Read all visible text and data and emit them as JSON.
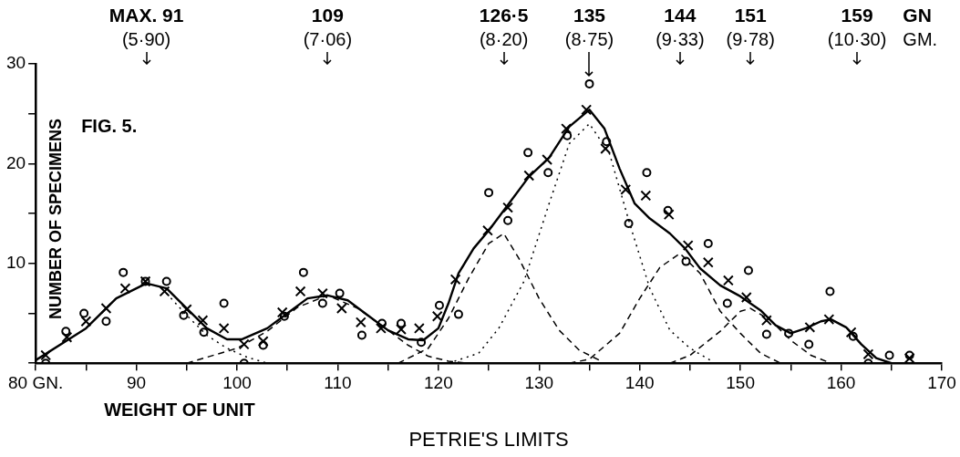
{
  "chart_data": {
    "type": "line",
    "title": "FIG. 5.",
    "xlabel": "WEIGHT OF UNIT",
    "ylabel": "NUMBER OF SPECIMENS",
    "annotations": [
      {
        "text": "MAX. 91\n(5·90)",
        "x": 91
      },
      {
        "text": "109\n(7·06)",
        "x": 109
      },
      {
        "text": "126·5\n(8·20)",
        "x": 126.5
      },
      {
        "text": "135\n(8·75)",
        "x": 135,
        "y": 28
      },
      {
        "text": "144\n(9·33)",
        "x": 144
      },
      {
        "text": "151\n(9·78)",
        "x": 151
      },
      "159\n(10·30)",
      "GN\nGM.",
      "PETRIE'S LIMITS"
    ],
    "xlim": [
      80,
      170
    ],
    "ylim": [
      0,
      30
    ],
    "xticks": [
      {
        "value": 80,
        "label": "80 GN."
      },
      {
        "value": 85,
        "label": null
      },
      90,
      {
        "value": 95,
        "label": null
      },
      100,
      {
        "value": 105,
        "label": null
      },
      110,
      {
        "value": 115,
        "label": null
      },
      120,
      {
        "value": 125,
        "label": null
      },
      130,
      {
        "value": 135,
        "label": null
      },
      140,
      {
        "value": 145,
        "label": null
      },
      150,
      {
        "value": 155,
        "label": null
      },
      160,
      {
        "value": 165,
        "label": null
      },
      170
    ],
    "yticks": [
      {
        "value": 0,
        "label": null
      },
      {
        "value": 5,
        "label": null
      },
      10,
      {
        "value": 15,
        "label": null
      },
      20,
      {
        "value": 25,
        "label": null
      },
      30
    ],
    "grid": false,
    "legend": false,
    "series": [
      {
        "type": "line",
        "color": "#000000",
        "line_style": "solid",
        "marker": "none",
        "x": [
          80,
          85,
          88,
          91,
          93,
          95,
          97,
          99,
          100.5,
          103,
          105,
          107,
          109,
          111,
          113,
          115,
          117,
          118.5,
          120,
          121,
          122,
          123.5,
          125,
          127,
          129,
          131,
          133,
          135,
          136.5,
          138,
          139.5,
          141,
          143,
          144.5,
          146,
          148,
          150,
          152,
          153.5,
          155,
          156.5,
          158,
          159,
          160.5,
          162,
          163.5,
          165
        ],
        "values": [
          0.3,
          3.5,
          6.5,
          8,
          7.5,
          5.5,
          3.5,
          2.4,
          2.4,
          3.5,
          5,
          6.5,
          6.8,
          6.3,
          4.8,
          3.3,
          2.4,
          2.3,
          3.5,
          6,
          9,
          11.5,
          13.3,
          16,
          18.7,
          20.6,
          23.7,
          25.4,
          23.5,
          19.5,
          16,
          14.5,
          13,
          11.5,
          9.5,
          7.8,
          6.7,
          5.3,
          3.8,
          3,
          3.5,
          4.2,
          4.4,
          3.6,
          1.9,
          0.5,
          0
        ]
      },
      {
        "type": "line",
        "color": "#000000",
        "line_style": "dotted",
        "marker": "none",
        "x": [
          93,
          95,
          97,
          99,
          101,
          103
        ],
        "values": [
          7,
          4.8,
          2.8,
          1.5,
          0.6,
          0
        ]
      },
      {
        "type": "line",
        "color": "#000000",
        "line_style": "dashed",
        "marker": "none",
        "x": [
          95,
          100,
          103,
          106,
          109,
          112,
          115,
          117,
          119,
          121,
          123
        ],
        "values": [
          0,
          1.5,
          3.2,
          5.6,
          6.8,
          5.5,
          3.3,
          1.8,
          0.7,
          0.2,
          0
        ]
      },
      {
        "type": "line",
        "color": "#000000",
        "line_style": "dashed",
        "marker": "none",
        "x": [
          116,
          119,
          121,
          123,
          125,
          126.5,
          128,
          130,
          132,
          134,
          136
        ],
        "values": [
          0,
          1.5,
          4.5,
          8.5,
          12,
          13,
          10.5,
          6.5,
          3.3,
          1.3,
          0.3
        ]
      },
      {
        "type": "line",
        "color": "#000000",
        "line_style": "dotted",
        "marker": "none",
        "x": [
          121,
          124,
          126,
          128.5,
          131,
          133,
          135,
          137,
          139,
          141,
          143,
          145,
          147
        ],
        "values": [
          0,
          1,
          3.5,
          8.2,
          16,
          22,
          24,
          21,
          14,
          7.5,
          3.3,
          1.5,
          0.3
        ]
      },
      {
        "type": "line",
        "color": "#000000",
        "line_style": "dashed",
        "marker": "none",
        "x": [
          133,
          135,
          138,
          140,
          142,
          144,
          146,
          148,
          150,
          152,
          154
        ],
        "values": [
          0,
          0.4,
          3,
          6.5,
          9.6,
          11,
          9,
          5.2,
          3,
          1,
          0
        ]
      },
      {
        "type": "line",
        "color": "#000000",
        "line_style": "dashed",
        "marker": "none",
        "x": [
          143,
          145,
          148,
          150,
          151,
          153,
          155,
          157,
          159
        ],
        "values": [
          0,
          0.8,
          3.2,
          5.2,
          5.5,
          4.3,
          2.3,
          0.8,
          0
        ]
      },
      {
        "type": "scatter",
        "color": "#000000",
        "marker": "circle",
        "x": [
          81,
          83,
          84.8,
          87,
          88.7,
          90.9,
          93,
          94.7,
          96.7,
          98.7,
          100.7,
          102.6,
          104.7,
          106.6,
          108.5,
          110.2,
          112.4,
          114.4,
          116.3,
          118.3,
          120.1,
          122,
          125,
          126.9,
          128.9,
          130.9,
          132.8,
          135,
          136.7,
          138.9,
          140.7,
          142.8,
          144.6,
          146.8,
          148.7,
          150.8,
          152.6,
          154.8,
          156.8,
          158.9,
          161.2,
          162.7,
          164.8,
          166.8
        ],
        "values": [
          0,
          3.2,
          5,
          4.2,
          9.1,
          8.2,
          8.2,
          4.8,
          3.1,
          6,
          0,
          1.8,
          4.7,
          9.1,
          6,
          7,
          2.8,
          4,
          4,
          2.1,
          5.8,
          4.9,
          17.1,
          14.3,
          21.1,
          19.1,
          22.8,
          28,
          22.2,
          14,
          19.1,
          15.3,
          10.2,
          12,
          6,
          9.3,
          2.9,
          3,
          1.9,
          7.2,
          2.7,
          0,
          0.8,
          0.8
        ]
      },
      {
        "type": "scatter",
        "color": "#000000",
        "marker": "cross",
        "x": [
          81,
          83.1,
          85,
          87,
          88.9,
          90.9,
          92.8,
          95,
          96.6,
          98.7,
          100.7,
          102.6,
          104.5,
          106.3,
          108.5,
          110.4,
          112.3,
          114.3,
          116.3,
          118.1,
          119.9,
          121.7,
          124.9,
          126.9,
          129,
          130.8,
          132.7,
          134.7,
          136.6,
          138.6,
          140.6,
          142.9,
          144.8,
          146.8,
          148.8,
          150.6,
          152.6,
          156.9,
          158.8,
          161,
          162.7,
          166.8
        ],
        "values": [
          0.8,
          2.6,
          4.2,
          5.5,
          7.5,
          8.2,
          7.2,
          5.4,
          4.3,
          3.5,
          1.9,
          2.2,
          5.1,
          7.2,
          7,
          5.5,
          4.1,
          3.5,
          3.4,
          3.5,
          4.7,
          8.4,
          13.3,
          15.6,
          18.8,
          20.4,
          23.5,
          25.4,
          21.5,
          17.4,
          16.8,
          14.9,
          11.8,
          10.1,
          8.3,
          6.6,
          4.3,
          3.6,
          4.4,
          3.1,
          0.9,
          0.5
        ]
      }
    ]
  }
}
